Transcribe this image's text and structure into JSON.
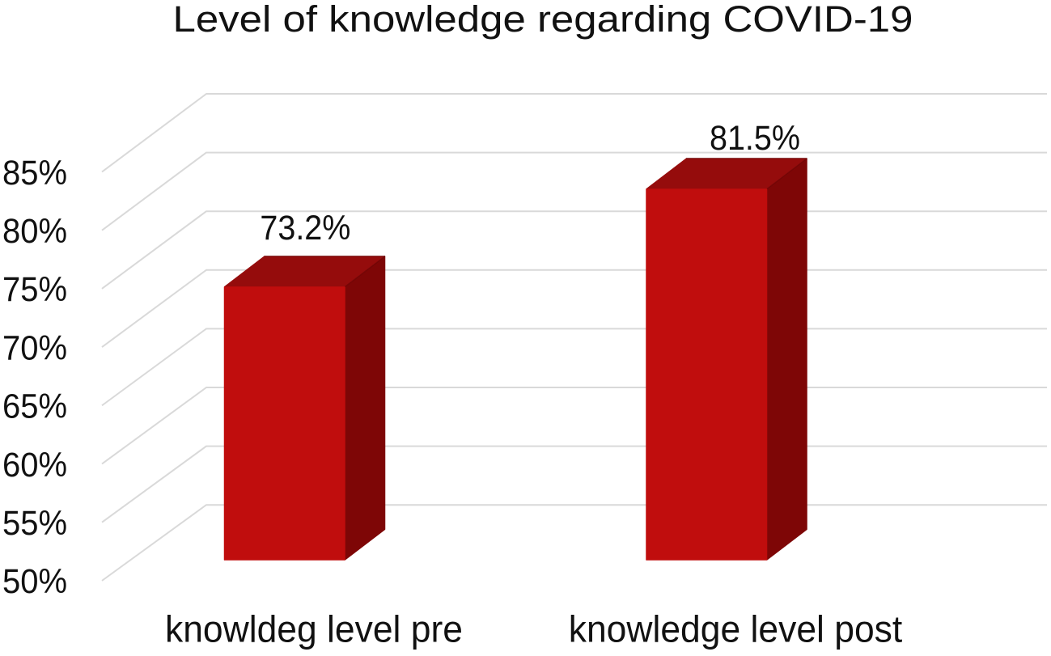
{
  "chart_data": {
    "type": "bar",
    "style": "3d-column",
    "title": "Level of knowledge regarding COVID-19",
    "categories": [
      "knowldeg level pre",
      "knowledge level post"
    ],
    "values": [
      73.2,
      81.5
    ],
    "data_labels": [
      "73.2%",
      "81.5%"
    ],
    "xlabel": "",
    "ylabel": "",
    "y_axis": {
      "min": 50,
      "max": 85,
      "step": 5,
      "tick_labels": [
        "85%",
        "80%",
        "75%",
        "70%",
        "65%",
        "60%",
        "55%",
        "50%"
      ]
    },
    "ylim": [
      50,
      85
    ],
    "grid": true,
    "legend": false,
    "colors": {
      "bar_front": "#c00d0d",
      "bar_top": "#950c0c",
      "bar_side": "#7e0606",
      "bar_edge": "#5e0303",
      "gridline": "#d9d9d9",
      "text": "#111111",
      "background": "#ffffff"
    }
  }
}
